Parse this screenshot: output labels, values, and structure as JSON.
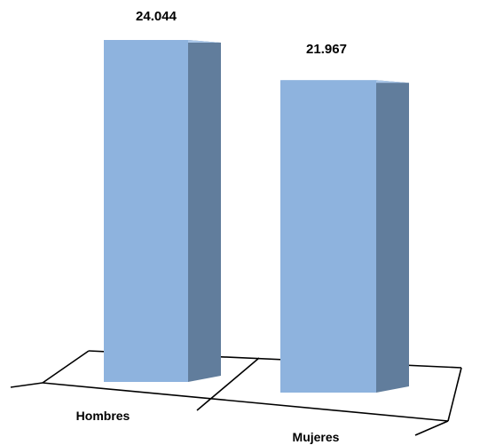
{
  "chart_data": {
    "type": "bar",
    "style": "3d-column",
    "categories": [
      "Hombres",
      "Mujeres"
    ],
    "values": [
      24044,
      21967
    ],
    "data_labels": [
      "24.044",
      "21.967"
    ],
    "title": "",
    "xlabel": "",
    "ylabel": "",
    "ylim": [
      0,
      24044
    ],
    "grid": false,
    "legend": "none",
    "colors": {
      "bar_front": "#8EB3DE",
      "bar_side": "#617D9C",
      "bar_top": "#A9C6E8",
      "axis": "#000000"
    }
  }
}
